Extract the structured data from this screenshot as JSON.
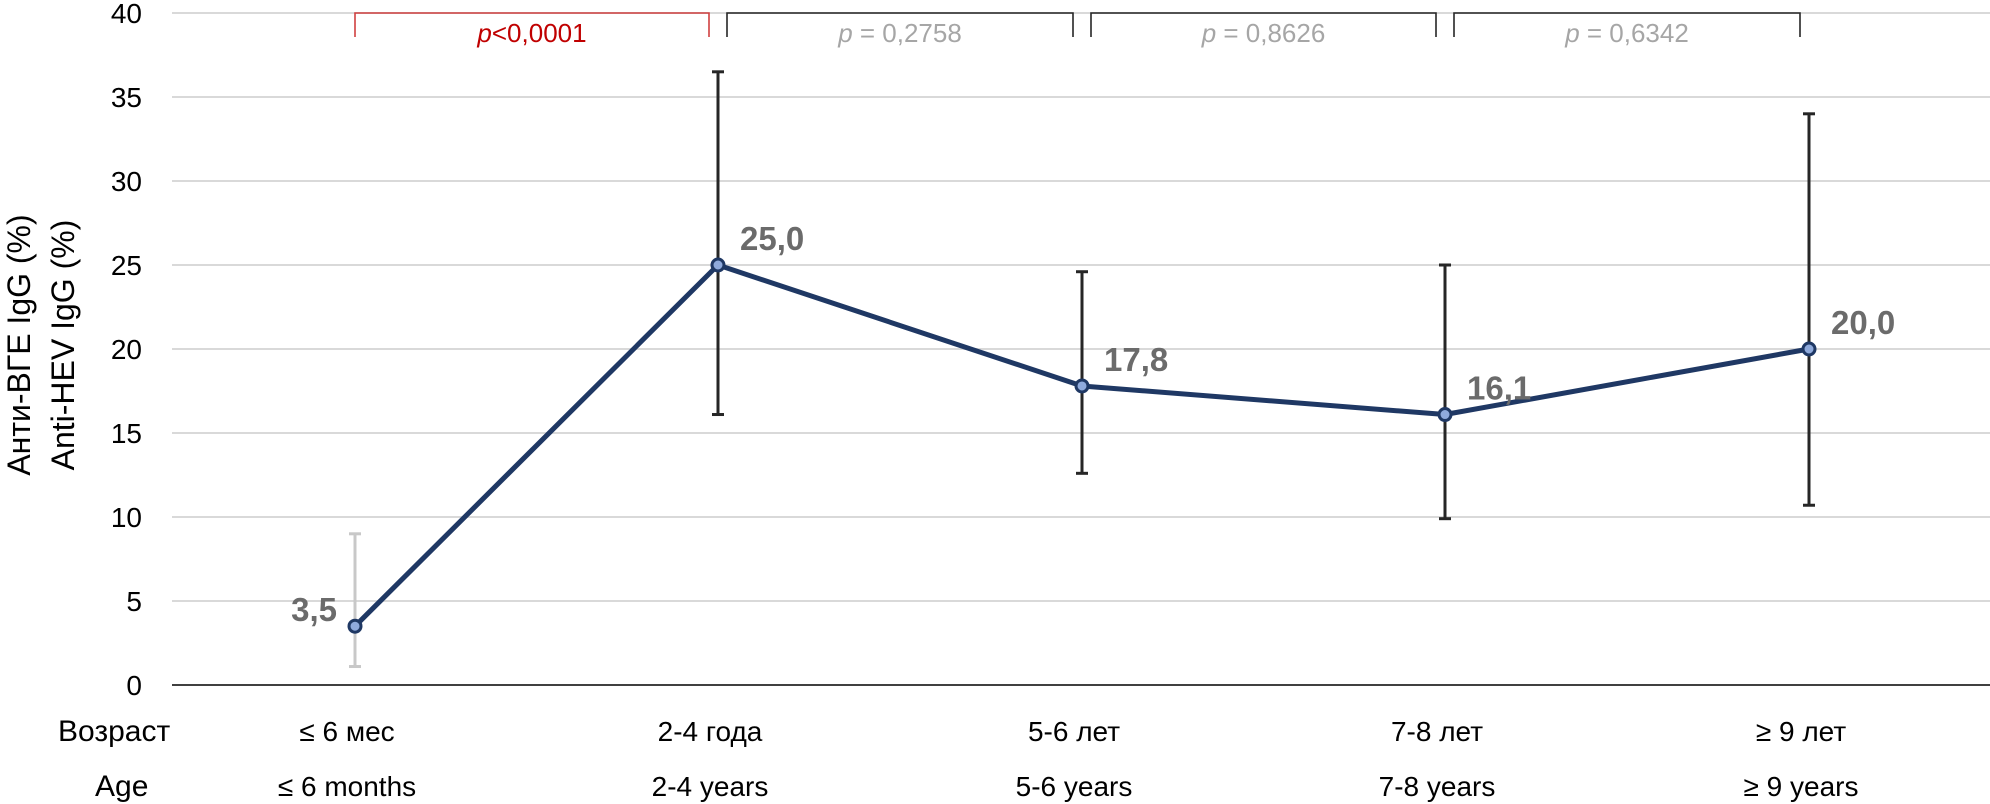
{
  "chart_data": {
    "type": "line",
    "ylabel_ru": "Анти-ВГЕ IgG (%)",
    "ylabel_en": "Anti-HEV IgG (%)",
    "row_label_ru": "Возраст",
    "row_label_en": "Age",
    "categories_ru": [
      "≤ 6 мес",
      "2-4 года",
      "5-6 лет",
      "7-8 лет",
      "≥ 9 лет"
    ],
    "categories_en": [
      "≤ 6 months",
      "2-4 years",
      "5-6 years",
      "7-8 years",
      "≥ 9 years"
    ],
    "values": [
      3.5,
      25.0,
      17.8,
      16.1,
      20.0
    ],
    "value_labels": [
      "3,5",
      "25,0",
      "17,8",
      "16,1",
      "20,0"
    ],
    "error_low": [
      1.1,
      16.1,
      12.6,
      9.9,
      10.7
    ],
    "error_high": [
      9.0,
      36.5,
      24.6,
      25.0,
      34.0
    ],
    "ylim": [
      0,
      40
    ],
    "yticks": [
      0,
      5,
      10,
      15,
      20,
      25,
      30,
      35,
      40
    ],
    "grid": true,
    "colors": {
      "line": "#1f3864",
      "marker_fill": "#8faadc",
      "errorbar": "#262626",
      "errorbar_first": "#c8c8c8",
      "grid": "#d9d9d9",
      "sig": "#c00000",
      "nonsig": "#a6a6a6",
      "bracket_sig": "#d04040",
      "bracket_nonsig": "#262626"
    },
    "comparisons": [
      {
        "from": 0,
        "to": 1,
        "p_prefix": "p",
        "p_text": "<0,0001",
        "significant": true
      },
      {
        "from": 1,
        "to": 2,
        "p_prefix": "p",
        "p_text": " = 0,2758",
        "significant": false
      },
      {
        "from": 2,
        "to": 3,
        "p_prefix": "p",
        "p_text": " = 0,8626",
        "significant": false
      },
      {
        "from": 3,
        "to": 4,
        "p_prefix": "p",
        "p_text": " = 0,6342",
        "significant": false
      }
    ]
  }
}
